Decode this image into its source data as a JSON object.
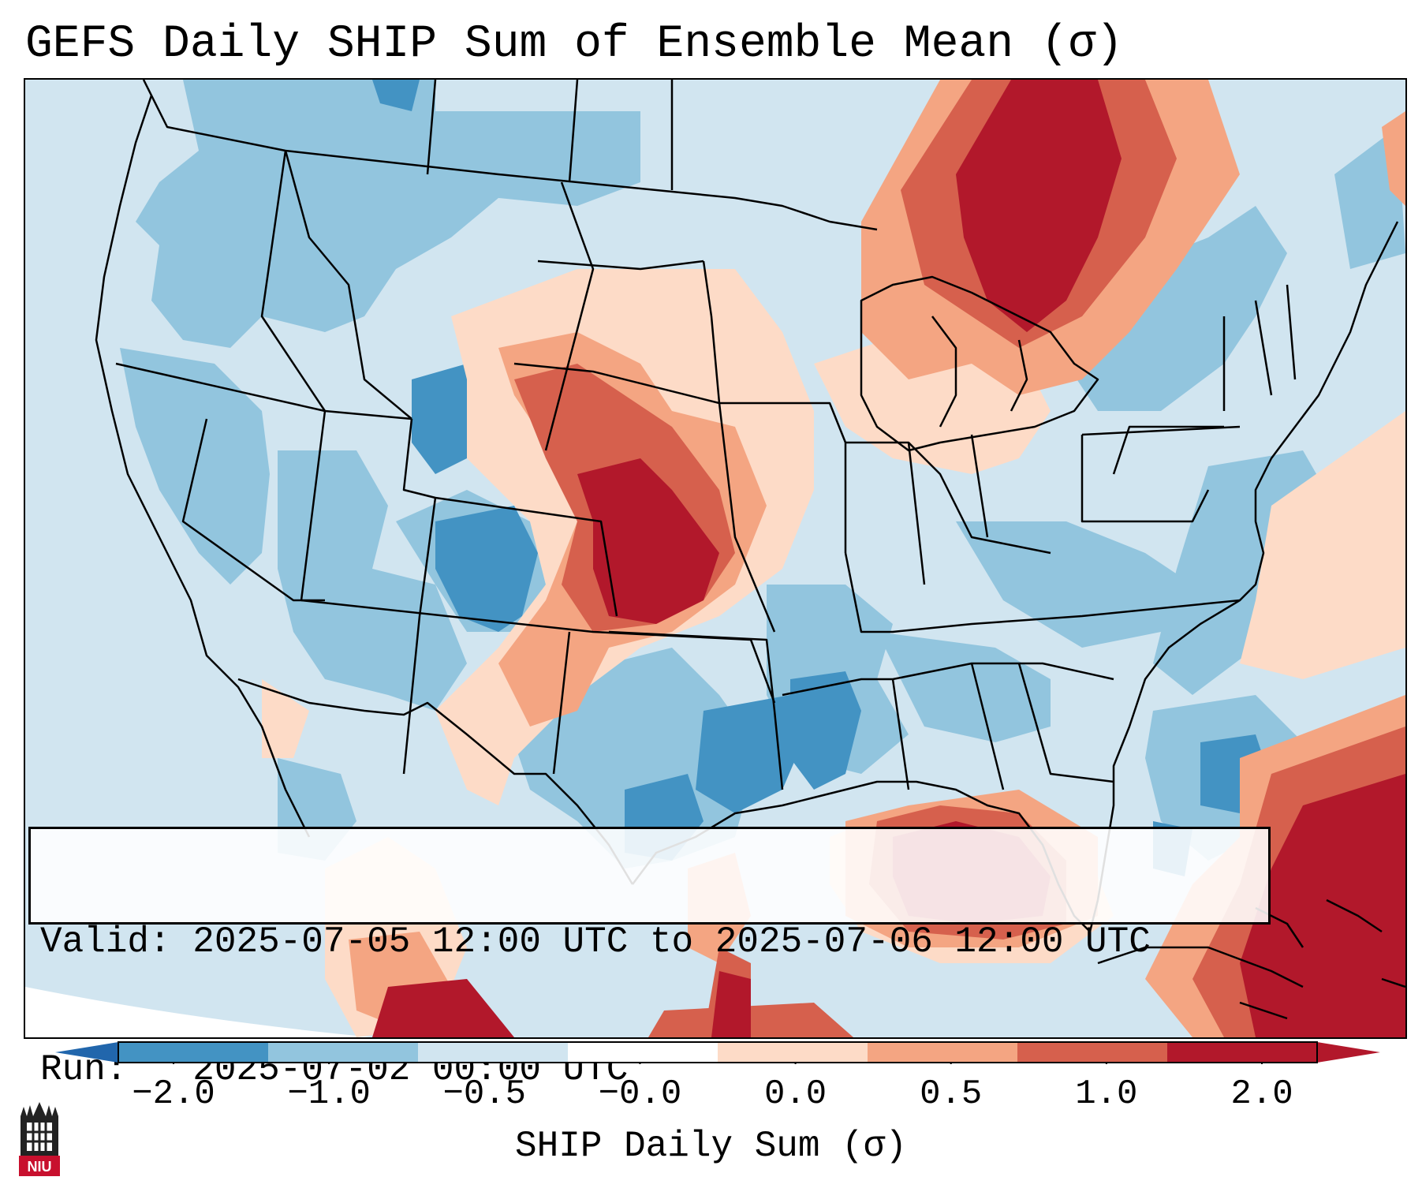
{
  "title": "GEFS Daily SHIP Sum of Ensemble Mean (σ)",
  "info": {
    "valid_label": "Valid:",
    "valid_value": "2025-07-05 12:00 UTC to 2025-07-06 12:00 UTC",
    "run_label": "Run:",
    "run_value": "2025-07-02 00:00 UTC"
  },
  "colorbar": {
    "label": "SHIP Daily Sum (σ)",
    "ticks": [
      "−2.0",
      "−1.0",
      "−0.5",
      "−0.0",
      "0.0",
      "0.5",
      "1.0",
      "2.0"
    ],
    "colors": [
      "#4393c3",
      "#92c5de",
      "#d1e5f0",
      "#ffffff",
      "#fddbc7",
      "#f4a582",
      "#d6604d",
      "#b2182b"
    ],
    "extend_low": "#2166ac",
    "extend_high": "#b2182b"
  },
  "palette": {
    "ocean_bg": "#d1e5f0",
    "blue_mid": "#92c5de",
    "blue_dark": "#4393c3",
    "red_light": "#fddbc7",
    "red_mid": "#f4a582",
    "red_strong": "#d6604d",
    "red_dark": "#b2182b"
  },
  "logo": {
    "text": "NIU"
  }
}
